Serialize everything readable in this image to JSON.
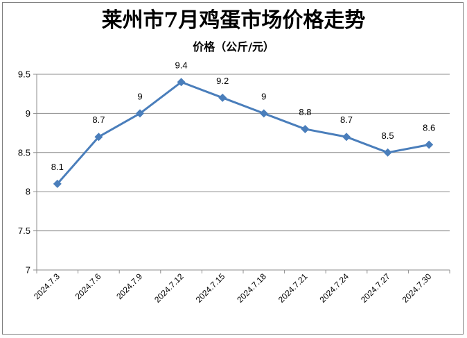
{
  "chart_data": {
    "type": "line",
    "title": "莱州市7月鸡蛋市场价格走势",
    "ylabel": "价格（公斤/元）",
    "xlabel": "",
    "categories": [
      "2024.7.3",
      "2024.7.6",
      "2024.7.9",
      "2024.7.12",
      "2024.7.15",
      "2024.7.18",
      "2024.7.21",
      "2024.7.24",
      "2024.7.27",
      "2024.7.30"
    ],
    "series": [
      {
        "values": [
          8.1,
          8.7,
          9,
          9.4,
          9.2,
          9,
          8.8,
          8.7,
          8.5,
          8.6
        ],
        "labels": [
          "8.1",
          "8.7",
          "9",
          "9.4",
          "9.2",
          "9",
          "8.8",
          "8.7",
          "8.5",
          "8.6"
        ]
      }
    ],
    "ylim": [
      7,
      9.5
    ],
    "yticks": [
      "7",
      "7.5",
      "8",
      "8.5",
      "9",
      "9.5"
    ],
    "grid": true,
    "legend": "none",
    "line_color": "#4a7ebb"
  }
}
